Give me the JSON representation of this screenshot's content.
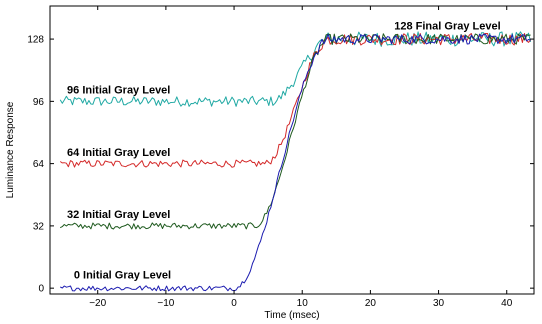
{
  "chart_data": {
    "type": "line",
    "title": "",
    "xlabel": "Time (msec)",
    "ylabel": "Luminance Response",
    "xlim": [
      -27,
      44
    ],
    "ylim": [
      -3,
      145
    ],
    "xticks": [
      -20,
      -10,
      0,
      10,
      20,
      30,
      40
    ],
    "yticks": [
      0,
      32,
      64,
      96,
      128
    ],
    "grid": false,
    "legend": "none",
    "transition": {
      "start_ms": 0,
      "end_ms": 14,
      "final_level": 128
    },
    "series": [
      {
        "color": "#21a9a4",
        "initial_level": 96,
        "transition_start_ms": 5.5,
        "noise": 2.6
      },
      {
        "color": "#d42a2a",
        "initial_level": 64,
        "transition_start_ms": 4.5,
        "noise": 1.9
      },
      {
        "color": "#1f5a1f",
        "initial_level": 32,
        "transition_start_ms": 3.0,
        "noise": 1.6
      },
      {
        "color": "#1c1cb0",
        "initial_level": 0,
        "transition_start_ms": 0.0,
        "noise": 1.4
      }
    ],
    "annotations": [
      {
        "text": "128 Final Gray Level",
        "x": 23.5,
        "y": 133
      },
      {
        "text": "96 Initial Gray Level",
        "x": -24.5,
        "y": 100
      },
      {
        "text": "64 Initial Gray Level",
        "x": -24.5,
        "y": 68
      },
      {
        "text": "32 Initial Gray Level",
        "x": -24.5,
        "y": 36
      },
      {
        "text": "0 Initial Gray Level",
        "x": -23.5,
        "y": 5
      }
    ]
  }
}
